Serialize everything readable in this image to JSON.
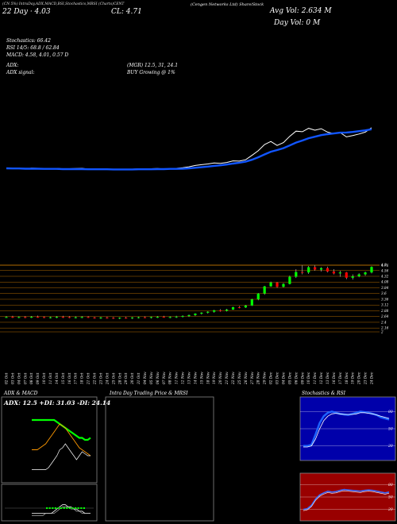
{
  "header": {
    "line1": "(Cengen Networks Ltd) Share/Stock",
    "ma_label": "22 Day · 4.03",
    "close_label": "CL: 4.71",
    "avg_vol": "Avg Vol: 2.634  M",
    "day_vol": "Day Vol: 0  M",
    "tabs": "(CN 5%) IntraDay,ADX,MACD,BSI,Stochastics,MRSI (Charts)CENT"
  },
  "indicators": {
    "stochastics": "Stochastics: 66.42",
    "rsi": "RSI 14/5: 68.8  / 62.84",
    "macd": "MACD: 4.58, 4.01, 0.57 D",
    "adx": "ADX:",
    "mgr": "(MGR) 12.5,  31,  24.1",
    "adx_signal": "ADX  signal:",
    "buy": "BUY Growing @ 1%"
  },
  "chart_data": {
    "type": "candlestick",
    "dates": [
      "02 Oct",
      "03 Oct",
      "04 Oct",
      "07 Oct",
      "08 Oct",
      "09 Oct",
      "10 Oct",
      "11 Oct",
      "14 Oct",
      "15 Oct",
      "16 Oct",
      "17 Oct",
      "18 Oct",
      "21 Oct",
      "22 Oct",
      "23 Oct",
      "24 Oct",
      "25 Oct",
      "28 Oct",
      "29 Oct",
      "30 Oct",
      "31 Oct",
      "04 Nov",
      "05 Nov",
      "06 Nov",
      "07 Nov",
      "08 Nov",
      "11 Nov",
      "12 Nov",
      "13 Nov",
      "14 Nov",
      "15 Nov",
      "18 Nov",
      "19 Nov",
      "20 Nov",
      "21 Nov",
      "22 Nov",
      "25 Nov",
      "26 Nov",
      "27 Nov",
      "28 Nov",
      "29 Nov",
      "02 Dec",
      "03 Dec",
      "04 Dec",
      "05 Dec",
      "06 Dec",
      "09 Dec",
      "10 Dec",
      "11 Dec",
      "12 Dec",
      "13 Dec",
      "16 Dec",
      "17 Dec",
      "18 Dec",
      "19 Dec",
      "20 Dec",
      "23 Dec",
      "24 Dec"
    ],
    "price_ticks": [
      4.8,
      4.76,
      4.56,
      4.32,
      4.08,
      3.84,
      3.6,
      3.36,
      3.12,
      2.88,
      2.64,
      2.4,
      2.16,
      2.0
    ],
    "price_ylim": [
      2.0,
      4.85
    ],
    "ohlc": [
      [
        2.62,
        2.66,
        2.58,
        2.62
      ],
      [
        2.63,
        2.67,
        2.58,
        2.6
      ],
      [
        2.6,
        2.65,
        2.57,
        2.62
      ],
      [
        2.62,
        2.66,
        2.57,
        2.61
      ],
      [
        2.61,
        2.66,
        2.58,
        2.63
      ],
      [
        2.63,
        2.68,
        2.59,
        2.62
      ],
      [
        2.62,
        2.65,
        2.57,
        2.6
      ],
      [
        2.6,
        2.64,
        2.56,
        2.61
      ],
      [
        2.61,
        2.66,
        2.57,
        2.63
      ],
      [
        2.63,
        2.67,
        2.58,
        2.62
      ],
      [
        2.62,
        2.66,
        2.57,
        2.6
      ],
      [
        2.6,
        2.65,
        2.56,
        2.61
      ],
      [
        2.61,
        2.66,
        2.57,
        2.62
      ],
      [
        2.62,
        2.66,
        2.58,
        2.6
      ],
      [
        2.6,
        2.63,
        2.55,
        2.58
      ],
      [
        2.58,
        2.63,
        2.54,
        2.6
      ],
      [
        2.6,
        2.64,
        2.55,
        2.59
      ],
      [
        2.59,
        2.62,
        2.54,
        2.57
      ],
      [
        2.57,
        2.61,
        2.53,
        2.59
      ],
      [
        2.59,
        2.63,
        2.55,
        2.58
      ],
      [
        2.58,
        2.62,
        2.54,
        2.6
      ],
      [
        2.6,
        2.64,
        2.56,
        2.61
      ],
      [
        2.61,
        2.65,
        2.57,
        2.6
      ],
      [
        2.6,
        2.64,
        2.56,
        2.62
      ],
      [
        2.62,
        2.66,
        2.58,
        2.63
      ],
      [
        2.63,
        2.67,
        2.59,
        2.61
      ],
      [
        2.61,
        2.65,
        2.57,
        2.62
      ],
      [
        2.62,
        2.67,
        2.58,
        2.64
      ],
      [
        2.64,
        2.69,
        2.6,
        2.66
      ],
      [
        2.66,
        2.72,
        2.62,
        2.7
      ],
      [
        2.7,
        2.78,
        2.66,
        2.76
      ],
      [
        2.76,
        2.82,
        2.72,
        2.8
      ],
      [
        2.8,
        2.86,
        2.76,
        2.84
      ],
      [
        2.84,
        2.92,
        2.8,
        2.9
      ],
      [
        2.9,
        2.95,
        2.84,
        2.88
      ],
      [
        2.88,
        2.96,
        2.85,
        2.93
      ],
      [
        2.93,
        3.05,
        2.92,
        3.03
      ],
      [
        3.03,
        3.08,
        2.98,
        3.02
      ],
      [
        3.02,
        3.12,
        3.0,
        3.1
      ],
      [
        3.1,
        3.38,
        3.08,
        3.36
      ],
      [
        3.36,
        3.62,
        3.32,
        3.6
      ],
      [
        3.6,
        3.92,
        3.55,
        3.9
      ],
      [
        3.9,
        4.1,
        3.88,
        4.06
      ],
      [
        4.06,
        4.08,
        3.84,
        3.88
      ],
      [
        3.88,
        4.04,
        3.85,
        4.0
      ],
      [
        4.0,
        4.35,
        3.98,
        4.3
      ],
      [
        4.3,
        4.62,
        4.25,
        4.5
      ],
      [
        4.5,
        4.78,
        4.4,
        4.48
      ],
      [
        4.48,
        4.75,
        4.42,
        4.7
      ],
      [
        4.7,
        4.78,
        4.55,
        4.6
      ],
      [
        4.6,
        4.7,
        4.52,
        4.66
      ],
      [
        4.66,
        4.72,
        4.48,
        4.52
      ],
      [
        4.52,
        4.62,
        4.4,
        4.44
      ],
      [
        4.44,
        4.55,
        4.3,
        4.48
      ],
      [
        4.48,
        4.5,
        4.2,
        4.26
      ],
      [
        4.26,
        4.4,
        4.18,
        4.32
      ],
      [
        4.32,
        4.45,
        4.28,
        4.4
      ],
      [
        4.4,
        4.52,
        4.34,
        4.48
      ],
      [
        4.48,
        4.74,
        4.44,
        4.71
      ]
    ],
    "close_line": [
      0.0,
      -0.2,
      -0.1,
      -0.3,
      0.1,
      0.0,
      -0.2,
      -0.1,
      0.0,
      -0.3,
      -0.2,
      -0.1,
      0.0,
      -0.4,
      -0.6,
      -0.4,
      -0.5,
      -0.7,
      -0.5,
      -0.6,
      -0.4,
      -0.3,
      -0.4,
      -0.2,
      -0.1,
      -0.3,
      -0.2,
      0.0,
      0.3,
      0.8,
      1.5,
      1.9,
      2.3,
      2.8,
      2.6,
      3.1,
      3.9,
      3.8,
      4.5,
      6.8,
      9.2,
      12.5,
      14.1,
      12.0,
      13.5,
      16.8,
      19.5,
      19.2,
      21.0,
      20.0,
      20.8,
      19.0,
      18.2,
      18.8,
      16.5,
      17.2,
      18.0,
      19.0,
      21.3
    ],
    "ma_line": [
      0.0,
      -0.1,
      -0.1,
      -0.2,
      -0.2,
      -0.2,
      -0.3,
      -0.3,
      -0.3,
      -0.4,
      -0.4,
      -0.4,
      -0.4,
      -0.5,
      -0.5,
      -0.5,
      -0.5,
      -0.6,
      -0.6,
      -0.6,
      -0.6,
      -0.5,
      -0.5,
      -0.5,
      -0.4,
      -0.4,
      -0.3,
      -0.3,
      -0.2,
      0.0,
      0.3,
      0.6,
      0.9,
      1.3,
      1.6,
      2.0,
      2.5,
      2.9,
      3.5,
      4.5,
      5.8,
      7.3,
      8.7,
      9.6,
      10.6,
      12.0,
      13.5,
      14.6,
      15.8,
      16.6,
      17.4,
      17.9,
      18.3,
      18.7,
      18.8,
      19.1,
      19.5,
      19.9,
      20.5
    ]
  },
  "panels": {
    "adx": {
      "title": "ADX  & MACD",
      "label": "ADX: 12.5 +DI: 31.03 -DI: 24.14",
      "adx": [
        30,
        30,
        30,
        30,
        30,
        30,
        30,
        30,
        30,
        29,
        28,
        27,
        26,
        25,
        24,
        23,
        22,
        21,
        21,
        20,
        20,
        21
      ],
      "plus_di": [
        15,
        15,
        15,
        16,
        17,
        18,
        20,
        22,
        24,
        26,
        28,
        27,
        26,
        24,
        22,
        20,
        18,
        16,
        15,
        14,
        13,
        12
      ],
      "minus_di": [
        5,
        5,
        5,
        5,
        5,
        5,
        6,
        8,
        10,
        12,
        15,
        16,
        18,
        16,
        14,
        12,
        10,
        12,
        14,
        13,
        12,
        12
      ],
      "macd": [
        2,
        2,
        2,
        2,
        2,
        2,
        2,
        2,
        3,
        4,
        5,
        6,
        6,
        5,
        5,
        4,
        4,
        3,
        3,
        2,
        2,
        2
      ],
      "signal": [
        1,
        1,
        1,
        1,
        1,
        2,
        2,
        2,
        2,
        3,
        4,
        5,
        5,
        5,
        4,
        4,
        3,
        3,
        2,
        2,
        2,
        2
      ]
    },
    "intraday": {
      "title": "Intra Day Trading Price  & MRSI"
    },
    "stoch": {
      "title": "Stochastics & RSI",
      "ticks": [
        "80",
        "50",
        "20"
      ],
      "k": [
        20,
        20,
        22,
        40,
        60,
        72,
        78,
        80,
        78,
        76,
        75,
        74,
        76,
        78,
        80,
        79,
        78,
        76,
        74,
        70,
        68,
        66
      ],
      "d": [
        18,
        18,
        20,
        32,
        50,
        64,
        72,
        76,
        77,
        76,
        75,
        75,
        75,
        76,
        78,
        78,
        77,
        76,
        74,
        72,
        70,
        68
      ]
    },
    "rsi": {
      "ticks": [
        "80",
        "50",
        "20"
      ],
      "rsi": [
        20,
        22,
        30,
        45,
        55,
        60,
        64,
        62,
        63,
        66,
        68,
        67,
        66,
        65,
        64,
        66,
        67,
        66,
        64,
        62,
        60,
        62
      ]
    }
  },
  "colors": {
    "ma": "#1155ff",
    "close": "#ffffff",
    "up": "#00ff00",
    "down": "#ff0000",
    "grid": "#b06a00",
    "rsi_bg": "#990000",
    "stoch_bg": "#0000aa"
  }
}
